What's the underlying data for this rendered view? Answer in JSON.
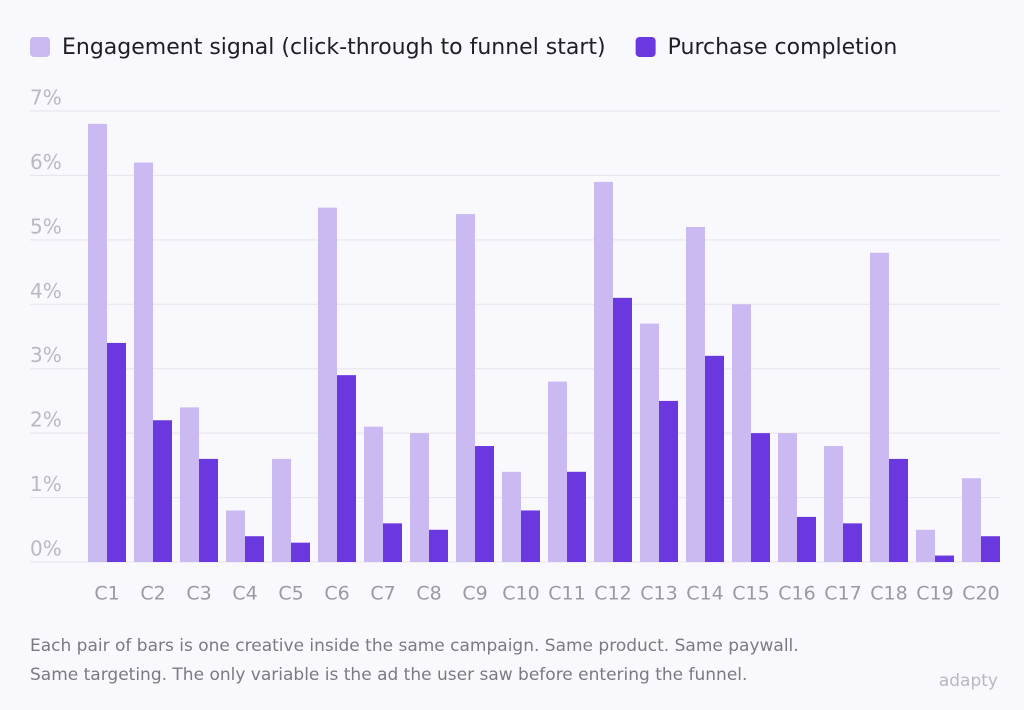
{
  "chart_data": {
    "type": "bar",
    "categories": [
      "C1",
      "C2",
      "C3",
      "C4",
      "C5",
      "C6",
      "C7",
      "C8",
      "C9",
      "C10",
      "C11",
      "C12",
      "C13",
      "C14",
      "C15",
      "C16",
      "C17",
      "C18",
      "C19",
      "C20"
    ],
    "series": [
      {
        "name": "Engagement signal (click-through to funnel start)",
        "color": "#cbbaf2",
        "values": [
          6.8,
          6.2,
          2.4,
          0.8,
          1.6,
          5.5,
          2.1,
          2.0,
          5.4,
          1.4,
          2.8,
          5.9,
          3.7,
          5.2,
          4.0,
          2.0,
          1.8,
          4.8,
          0.5,
          1.3
        ]
      },
      {
        "name": "Purchase completion",
        "color": "#6b38df",
        "values": [
          3.4,
          2.2,
          1.6,
          0.4,
          0.3,
          2.9,
          0.6,
          0.5,
          1.8,
          0.8,
          1.4,
          4.1,
          2.5,
          3.2,
          2.0,
          0.7,
          0.6,
          1.6,
          0.1,
          0.4
        ]
      }
    ],
    "ylim": [
      0,
      7
    ],
    "yticks": [
      {
        "value": 0,
        "label": "0%"
      },
      {
        "value": 1,
        "label": "1%"
      },
      {
        "value": 2,
        "label": "2%"
      },
      {
        "value": 3,
        "label": "3%"
      },
      {
        "value": 4,
        "label": "4%"
      },
      {
        "value": 5,
        "label": "5%"
      },
      {
        "value": 6,
        "label": "6%"
      },
      {
        "value": 7,
        "label": "7%"
      }
    ],
    "grid": true,
    "legend": "top",
    "caption": [
      "Each pair of bars is one creative inside the same campaign. Same product. Same paywall.",
      "Same targeting. The only variable is the ad the user saw before entering the funnel."
    ],
    "logo": "adapty"
  }
}
